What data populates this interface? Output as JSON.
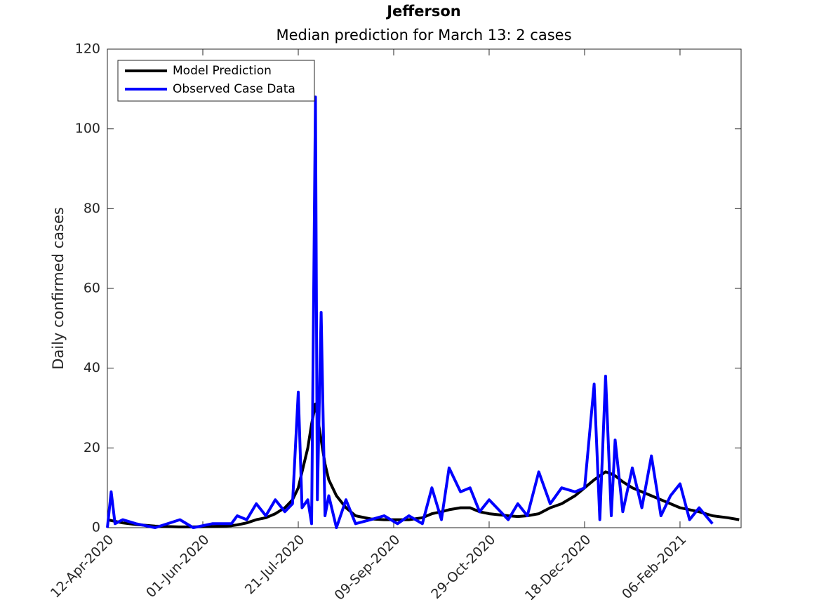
{
  "chart_data": {
    "type": "line",
    "title": "Jefferson",
    "subtitle": "Median prediction for March 13: 2 cases",
    "y_label": "Daily confirmed cases",
    "x": [
      "2020-04-12",
      "2020-04-14",
      "2020-04-16",
      "2020-04-20",
      "2020-04-27",
      "2020-05-07",
      "2020-05-20",
      "2020-05-27",
      "2020-06-06",
      "2020-06-16",
      "2020-06-19",
      "2020-06-24",
      "2020-06-29",
      "2020-07-04",
      "2020-07-09",
      "2020-07-14",
      "2020-07-18",
      "2020-07-21",
      "2020-07-23",
      "2020-07-26",
      "2020-07-28",
      "2020-07-30",
      "2020-07-31",
      "2020-08-02",
      "2020-08-04",
      "2020-08-06",
      "2020-08-10",
      "2020-08-15",
      "2020-08-20",
      "2020-08-28",
      "2020-09-04",
      "2020-09-11",
      "2020-09-17",
      "2020-09-24",
      "2020-09-29",
      "2020-10-04",
      "2020-10-08",
      "2020-10-14",
      "2020-10-19",
      "2020-10-24",
      "2020-10-29",
      "2020-11-08",
      "2020-11-13",
      "2020-11-18",
      "2020-11-24",
      "2020-11-30",
      "2020-12-06",
      "2020-12-13",
      "2020-12-18",
      "2020-12-23",
      "2020-12-26",
      "2020-12-29",
      "2021-01-01",
      "2021-01-03",
      "2021-01-07",
      "2021-01-12",
      "2021-01-17",
      "2021-01-22",
      "2021-01-27",
      "2021-02-01",
      "2021-02-06",
      "2021-02-11",
      "2021-02-16",
      "2021-02-23",
      "2021-03-03",
      "2021-03-09"
    ],
    "series": [
      {
        "name": "Model Prediction",
        "color": "#000000",
        "values": [
          2,
          1.8,
          1.6,
          1.2,
          0.8,
          0.4,
          0.2,
          0.2,
          0.3,
          0.5,
          0.7,
          1.2,
          2,
          2.5,
          3.5,
          5,
          7,
          10,
          14,
          20,
          26,
          31,
          28,
          22,
          16,
          12,
          8,
          5,
          3,
          2.2,
          2,
          2,
          2,
          2.5,
          3.5,
          4,
          4.5,
          5,
          5,
          4,
          3.5,
          3,
          2.8,
          3,
          3.5,
          5,
          6,
          8,
          10,
          12,
          13,
          14,
          13.5,
          13,
          11.5,
          10,
          9,
          8,
          7,
          6,
          5,
          4.5,
          4,
          3,
          2.5,
          2
        ]
      },
      {
        "name": "Observed Case Data",
        "color": "#0000ff",
        "values": [
          0,
          9,
          1,
          2,
          1,
          0,
          2,
          0,
          1,
          1,
          3,
          2,
          6,
          3,
          7,
          4,
          6,
          34,
          5,
          7,
          1,
          108,
          7,
          54,
          3,
          8,
          0,
          7,
          1,
          2,
          3,
          1,
          3,
          1,
          10,
          2,
          15,
          9,
          10,
          4,
          7,
          2,
          6,
          3,
          14,
          6,
          10,
          9,
          10,
          36,
          2,
          38,
          3,
          22,
          4,
          15,
          5,
          18,
          3,
          8,
          11,
          2,
          5,
          1,
          null,
          null
        ]
      }
    ],
    "xlim": [
      "2020-04-12",
      "2021-03-10"
    ],
    "xticks": [
      {
        "value": "2020-04-12",
        "label": "12-Apr-2020"
      },
      {
        "value": "2020-06-01",
        "label": "01-Jun-2020"
      },
      {
        "value": "2020-07-21",
        "label": "21-Jul-2020"
      },
      {
        "value": "2020-09-09",
        "label": "09-Sep-2020"
      },
      {
        "value": "2020-10-29",
        "label": "29-Oct-2020"
      },
      {
        "value": "2020-12-18",
        "label": "18-Dec-2020"
      },
      {
        "value": "2021-02-06",
        "label": "06-Feb-2021"
      }
    ],
    "ylim": [
      0,
      120
    ],
    "yticks": [
      0,
      20,
      40,
      60,
      80,
      100,
      120
    ],
    "legend": "upper-left"
  }
}
